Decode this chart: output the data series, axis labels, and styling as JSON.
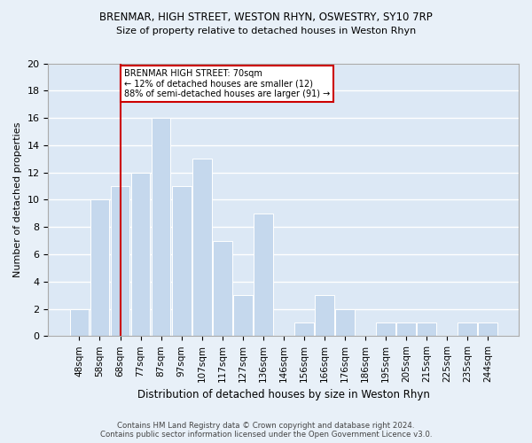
{
  "title1": "BRENMAR, HIGH STREET, WESTON RHYN, OSWESTRY, SY10 7RP",
  "title2": "Size of property relative to detached houses in Weston Rhyn",
  "xlabel": "Distribution of detached houses by size in Weston Rhyn",
  "ylabel": "Number of detached properties",
  "bar_labels": [
    "48sqm",
    "58sqm",
    "68sqm",
    "77sqm",
    "87sqm",
    "97sqm",
    "107sqm",
    "117sqm",
    "127sqm",
    "136sqm",
    "146sqm",
    "156sqm",
    "166sqm",
    "176sqm",
    "186sqm",
    "195sqm",
    "205sqm",
    "215sqm",
    "225sqm",
    "235sqm",
    "244sqm"
  ],
  "bar_values": [
    2,
    10,
    11,
    12,
    16,
    11,
    13,
    7,
    3,
    9,
    0,
    1,
    3,
    2,
    0,
    1,
    1,
    1,
    0,
    1,
    1
  ],
  "bar_color": "#c5d8ed",
  "bar_edge_color": "#ffffff",
  "annotation_text": "BRENMAR HIGH STREET: 70sqm\n← 12% of detached houses are smaller (12)\n88% of semi-detached houses are larger (91) →",
  "annotation_box_color": "#ffffff",
  "annotation_box_edge_color": "#cc0000",
  "vline_x_label": "68sqm",
  "vline_color": "#cc0000",
  "background_color": "#e8f0f8",
  "plot_background_color": "#dce8f5",
  "grid_color": "#ffffff",
  "footer": "Contains HM Land Registry data © Crown copyright and database right 2024.\nContains public sector information licensed under the Open Government Licence v3.0.",
  "ylim": [
    0,
    20
  ],
  "yticks": [
    0,
    2,
    4,
    6,
    8,
    10,
    12,
    14,
    16,
    18,
    20
  ]
}
